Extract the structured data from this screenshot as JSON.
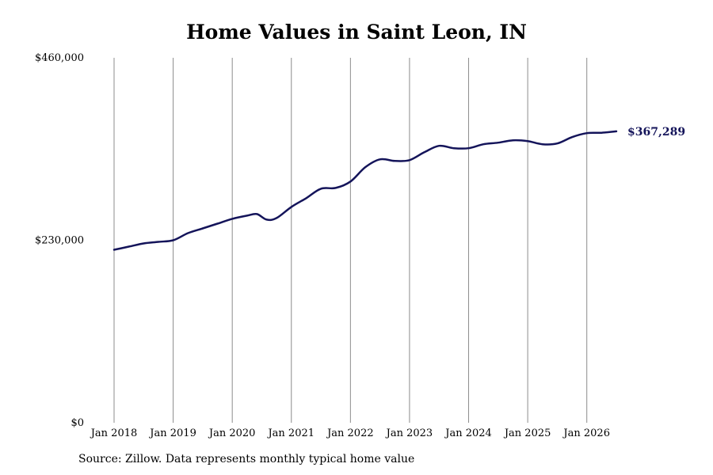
{
  "chart_data": {
    "type": "line",
    "title": "Home Values in Saint Leon, IN",
    "xlabel": "",
    "ylabel": "",
    "x_ticks": [
      "Jan 2018",
      "Jan 2019",
      "Jan 2020",
      "Jan 2021",
      "Jan 2022",
      "Jan 2023",
      "Jan 2024",
      "Jan 2025",
      "Jan 2026"
    ],
    "y_ticks": [
      "$0",
      "$230,000",
      "$460,000"
    ],
    "ylim": [
      0,
      460000
    ],
    "xlim": [
      "2018-01",
      "2026-07"
    ],
    "grid": "vertical lines at each January",
    "line_color": "#14145a",
    "end_label": "$367,289",
    "series": [
      {
        "x": [
          "2018-01",
          "2018-04",
          "2018-07",
          "2018-10",
          "2019-01",
          "2019-04",
          "2019-07",
          "2019-10",
          "2020-01",
          "2020-04",
          "2020-06",
          "2020-08",
          "2020-10",
          "2021-01",
          "2021-04",
          "2021-07",
          "2021-10",
          "2022-01",
          "2022-04",
          "2022-07",
          "2022-10",
          "2023-01",
          "2023-04",
          "2023-07",
          "2023-10",
          "2024-01",
          "2024-04",
          "2024-07",
          "2024-10",
          "2025-01",
          "2025-04",
          "2025-07",
          "2025-10",
          "2026-01",
          "2026-04",
          "2026-07"
        ],
        "values": [
          218000,
          222000,
          226000,
          228000,
          230000,
          239000,
          245000,
          251000,
          257000,
          261000,
          263000,
          256000,
          258000,
          272000,
          283000,
          295000,
          296000,
          304000,
          322000,
          332000,
          330000,
          331000,
          341000,
          349000,
          346000,
          346000,
          351000,
          353000,
          356000,
          355000,
          351000,
          352000,
          360000,
          365000,
          365500,
          367289
        ]
      }
    ]
  },
  "footer": {
    "source": "Source: Zillow. Data represents monthly typical home value"
  }
}
